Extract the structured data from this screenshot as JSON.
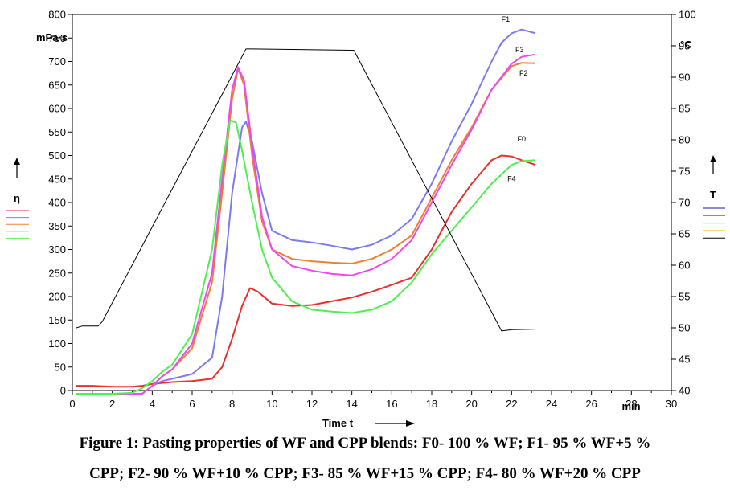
{
  "chart_data": {
    "type": "line",
    "title": "",
    "xlabel": "Time t",
    "ylabel_left": "η",
    "ylabel_left_unit": "mPa·s",
    "ylabel_right": "T",
    "ylabel_right_unit": "°C",
    "xlim": [
      0,
      30
    ],
    "ylim_left": [
      0,
      800
    ],
    "ylim_right": [
      40,
      100
    ],
    "x_unit": "min",
    "x_ticks": [
      "0",
      "2",
      "4",
      "6",
      "8",
      "10",
      "12",
      "14",
      "16",
      "18",
      "20",
      "22",
      "24",
      "26",
      "28",
      "30"
    ],
    "y_left_ticks": [
      "0",
      "50",
      "100",
      "150",
      "200",
      "250",
      "300",
      "350",
      "400",
      "450",
      "500",
      "550",
      "600",
      "650",
      "700",
      "750",
      "800"
    ],
    "y_right_ticks": [
      "40",
      "45",
      "50",
      "55",
      "60",
      "65",
      "70",
      "75",
      "80",
      "85",
      "90",
      "95",
      "100"
    ],
    "grid": false,
    "legend": "left and right margins (color swatches)",
    "series": [
      {
        "name": "F0",
        "color": "#e8302c",
        "x": [
          0.2,
          1,
          2,
          3,
          3.5,
          4,
          5,
          6,
          7,
          7.5,
          8,
          8.5,
          8.9,
          9.3,
          10,
          11,
          12,
          13,
          14,
          15,
          16,
          17,
          18,
          19,
          20,
          21,
          21.5,
          22,
          22.5,
          23.2
        ],
        "values": [
          10,
          10,
          8,
          8,
          10,
          14,
          18,
          20,
          25,
          50,
          110,
          180,
          218,
          210,
          185,
          180,
          182,
          190,
          198,
          210,
          225,
          240,
          300,
          380,
          440,
          490,
          500,
          498,
          490,
          480
        ]
      },
      {
        "name": "F1",
        "color": "#7b7bef",
        "x": [
          0.2,
          2,
          3,
          3.5,
          4,
          4.5,
          5,
          6,
          7,
          7.5,
          8,
          8.5,
          8.7,
          9,
          9.5,
          10,
          11,
          12,
          13,
          14,
          15,
          16,
          17,
          18,
          19,
          20,
          21,
          21.5,
          22,
          22.5,
          23.2
        ],
        "values": [
          -15,
          -15,
          -15,
          -10,
          10,
          20,
          25,
          35,
          70,
          200,
          420,
          560,
          572,
          530,
          420,
          340,
          320,
          315,
          308,
          300,
          310,
          330,
          365,
          440,
          530,
          610,
          700,
          740,
          760,
          768,
          760
        ]
      },
      {
        "name": "F2",
        "color": "#f08030",
        "x": [
          0.2,
          2,
          3,
          3.5,
          4,
          4.5,
          5,
          6,
          7,
          7.5,
          8,
          8.3,
          8.6,
          9,
          9.5,
          10,
          11,
          12,
          13,
          14,
          15,
          16,
          17,
          18,
          19,
          20,
          21,
          22,
          22.5,
          23.2
        ],
        "values": [
          -15,
          -15,
          -15,
          -10,
          10,
          30,
          45,
          90,
          230,
          420,
          620,
          685,
          650,
          500,
          360,
          300,
          280,
          275,
          272,
          270,
          280,
          300,
          330,
          410,
          490,
          560,
          640,
          690,
          697,
          696
        ]
      },
      {
        "name": "F3",
        "color": "#ee48ee",
        "x": [
          0.2,
          2,
          3,
          3.5,
          4,
          4.5,
          5,
          6,
          7,
          7.5,
          8,
          8.3,
          8.6,
          9,
          9.5,
          10,
          11,
          12,
          13,
          14,
          15,
          16,
          17,
          18,
          19,
          20,
          21,
          22,
          22.5,
          23.2
        ],
        "values": [
          -15,
          -15,
          -15,
          -10,
          10,
          30,
          45,
          100,
          250,
          450,
          640,
          688,
          660,
          520,
          370,
          300,
          265,
          255,
          248,
          245,
          258,
          280,
          320,
          400,
          480,
          555,
          640,
          695,
          710,
          715
        ]
      },
      {
        "name": "F4",
        "color": "#50ee50",
        "x": [
          0.2,
          2,
          3,
          3.5,
          4,
          4.5,
          5,
          6,
          7,
          7.5,
          7.9,
          8.2,
          8.5,
          9,
          9.5,
          10,
          11,
          12,
          13,
          14,
          15,
          16,
          17,
          18,
          19,
          20,
          21,
          22,
          22.5,
          23.2
        ],
        "values": [
          -10,
          -10,
          -5,
          5,
          20,
          40,
          55,
          120,
          300,
          480,
          575,
          570,
          510,
          400,
          300,
          240,
          190,
          172,
          168,
          165,
          172,
          190,
          230,
          290,
          340,
          390,
          440,
          480,
          488,
          490
        ]
      },
      {
        "name": "T",
        "axis": "right",
        "color": "#000000",
        "x": [
          0.2,
          0.5,
          1.3,
          1.5,
          8.7,
          9,
          14,
          14.1,
          21.5,
          22,
          23.2
        ],
        "values": [
          50,
          50.3,
          50.3,
          51,
          94.5,
          94.5,
          94.3,
          94.3,
          49.5,
          49.7,
          49.8
        ]
      }
    ],
    "series_labels": [
      "F0",
      "F1",
      "F2",
      "F3",
      "F4"
    ]
  },
  "legend_left_colors": [
    "#e8302c",
    "#7b7bef",
    "#f08030",
    "#ee48ee",
    "#50ee50"
  ],
  "legend_right_colors": [
    "#1a1aa8",
    "#e8302c",
    "#22a022",
    "#f0c020",
    "#000000"
  ],
  "caption": {
    "line1": "Figure 1: Pasting properties of WF and CPP blends: F0- 100 % WF; F1- 95 % WF+5 %",
    "line2": "CPP; F2- 90 % WF+10 % CPP; F3- 85 % WF+15 % CPP; F4- 80 % WF+20 % CPP"
  }
}
